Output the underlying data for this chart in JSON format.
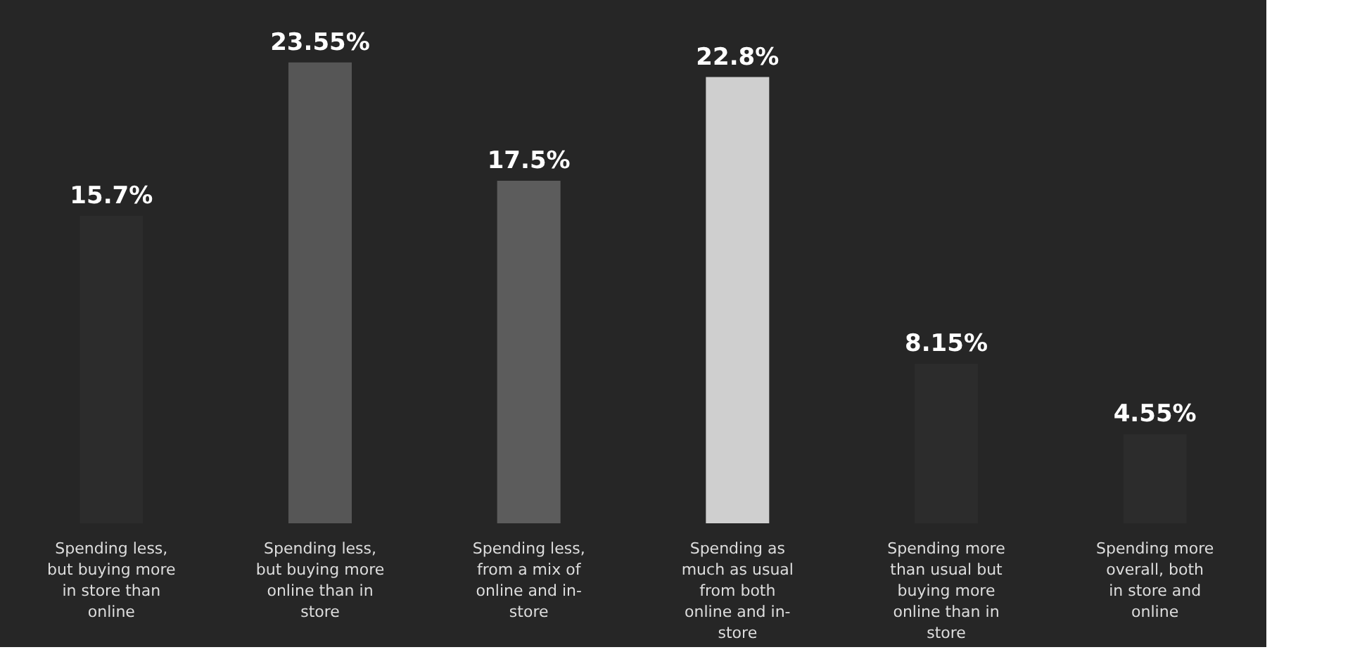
{
  "chart_data": {
    "type": "bar",
    "categories": [
      "Spending less, but buying more in store than online",
      "Spending less, but buying more online than in store",
      "Spending less, from a mix of online and in-store",
      "Spending as much as usual from both online and in-store",
      "Spending more than usual but buying more online than in store",
      "Spending more overall, both in store and online"
    ],
    "values": [
      15.7,
      23.55,
      17.5,
      22.8,
      8.15,
      4.55
    ],
    "colors": [
      "#2c2c2c",
      "#565656",
      "#5c5c5c",
      "#cfcfcf",
      "#2c2c2c",
      "#2c2c2c"
    ],
    "value_labels": [
      "15.7%",
      "23.55%",
      "17.5%",
      "22.8%",
      "8.15%",
      "4.55%"
    ]
  }
}
